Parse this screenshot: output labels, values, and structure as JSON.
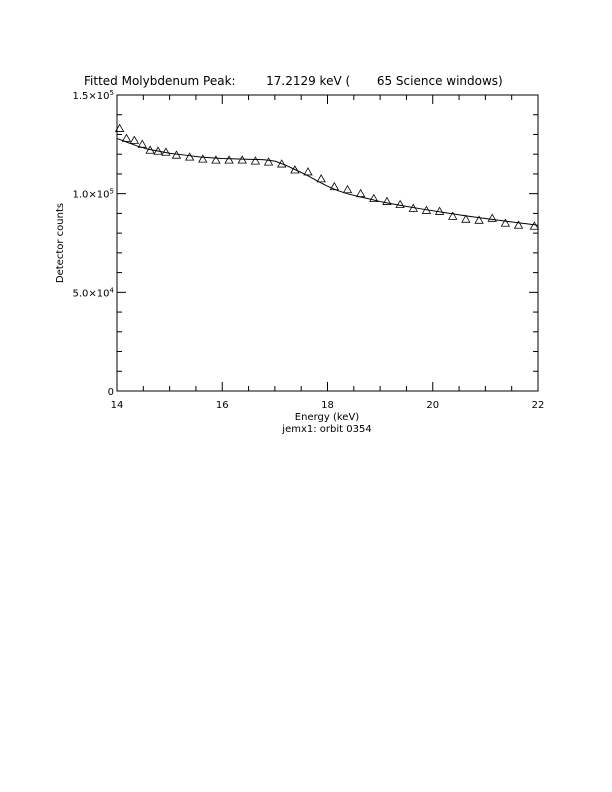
{
  "chart_data": {
    "type": "scatter",
    "title": "Fitted Molybdenum Peak:        17.2129 keV (       65 Science windows)",
    "xlabel": "Energy (keV)",
    "ylabel": "Detector counts",
    "subtitle": "jemx1: orbit 0354",
    "xlim": [
      14,
      22
    ],
    "ylim": [
      0,
      150000
    ],
    "x_ticks": [
      14,
      16,
      18,
      20,
      22
    ],
    "x_tick_labels": [
      "14",
      "16",
      "18",
      "20",
      "22"
    ],
    "y_ticks": [
      0,
      50000,
      100000,
      150000
    ],
    "y_tick_labels": [
      {
        "mantissa": "0",
        "exp": ""
      },
      {
        "mantissa": "5.0×10",
        "exp": "4"
      },
      {
        "mantissa": "1.0×10",
        "exp": "5"
      },
      {
        "mantissa": "1.5×10",
        "exp": "5"
      }
    ],
    "grid": false,
    "series": [
      {
        "marker": "triangle",
        "x": [
          14.05,
          14.18,
          14.33,
          14.48,
          14.63,
          14.78,
          14.93,
          15.13,
          15.38,
          15.63,
          15.88,
          16.13,
          16.38,
          16.63,
          16.88,
          17.13,
          17.38,
          17.63,
          17.88,
          18.13,
          18.38,
          18.63,
          18.88,
          19.13,
          19.38,
          19.63,
          19.88,
          20.13,
          20.38,
          20.63,
          20.88,
          21.13,
          21.38,
          21.63,
          21.93
        ],
        "y": [
          133000,
          128000,
          127000,
          125000,
          122000,
          121500,
          121000,
          119500,
          118500,
          117500,
          117000,
          117000,
          117000,
          116500,
          116000,
          115000,
          112000,
          111000,
          107500,
          103500,
          102000,
          100000,
          97500,
          96000,
          94500,
          92500,
          91500,
          91000,
          88500,
          87000,
          86500,
          87500,
          85000,
          84000,
          83500
        ]
      },
      {
        "marker": "line",
        "x": [
          14.0,
          14.2,
          14.4,
          14.6,
          14.8,
          15.0,
          15.3,
          15.6,
          16.0,
          16.4,
          16.8,
          17.0,
          17.2,
          17.4,
          17.6,
          17.8,
          18.0,
          18.2,
          18.4,
          18.6,
          18.8,
          19.0,
          19.4,
          19.8,
          20.2,
          20.6,
          21.0,
          21.4,
          21.8,
          22.0
        ],
        "y": [
          128000,
          126000,
          124000,
          122500,
          121500,
          120500,
          119500,
          118500,
          117800,
          117500,
          117200,
          116500,
          114500,
          112000,
          109500,
          106500,
          103800,
          101500,
          99800,
          98500,
          97300,
          96000,
          94000,
          92200,
          90500,
          88900,
          87400,
          86000,
          84700,
          84000
        ]
      }
    ]
  }
}
